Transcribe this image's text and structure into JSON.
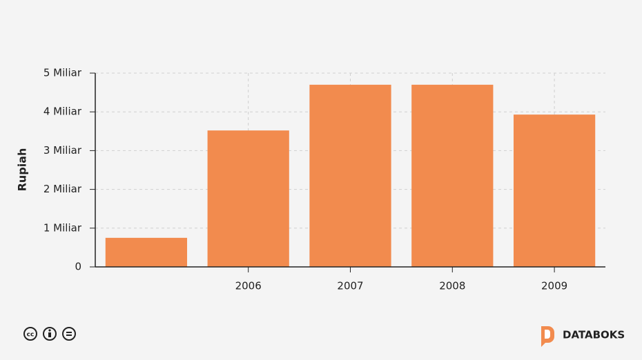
{
  "chart_data": {
    "type": "bar",
    "y_label": "Rupiah",
    "categories": [
      null,
      "2006",
      "2007",
      "2008",
      "2009"
    ],
    "values": [
      750000000,
      3520000000,
      4700000000,
      4700000000,
      3930000000
    ],
    "color": "#f28b4e",
    "ylim": [
      0,
      5000000000
    ],
    "yticks": [
      0,
      {
        "value": 1000000000,
        "label": "1 Miliar"
      },
      {
        "value": 2000000000,
        "label": "2 Miliar"
      },
      {
        "value": 3000000000,
        "label": "3 Miliar"
      },
      {
        "value": 4000000000,
        "label": "4 Miliar"
      },
      {
        "value": 5000000000,
        "label": "5 Miliar"
      }
    ],
    "grid": true
  },
  "footer": {
    "brand": "DATABOKS"
  }
}
